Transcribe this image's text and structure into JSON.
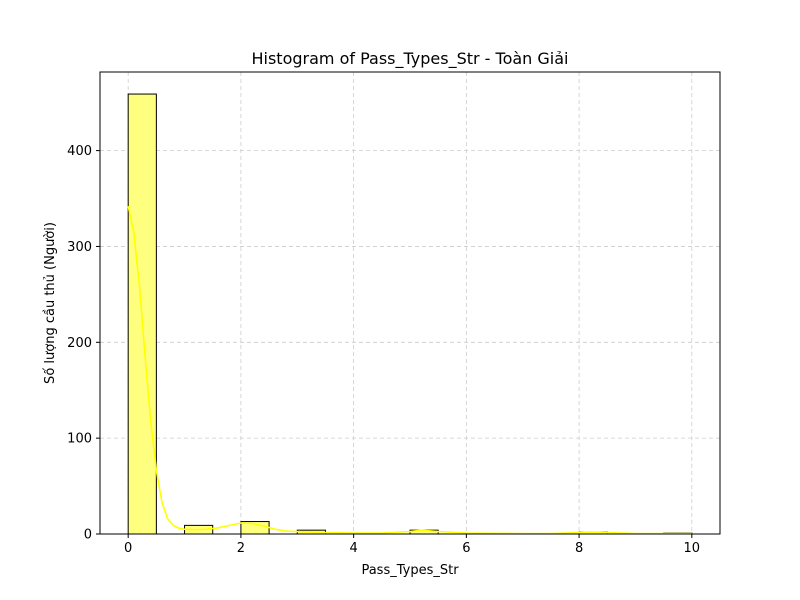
{
  "chart_data": {
    "type": "bar",
    "title": "Histogram of Pass_Types_Str - Toàn Giải",
    "xlabel": "Pass_Types_Str",
    "ylabel": "Số lượng cầu thủ (Người)",
    "xlim": [
      -0.5,
      10.5
    ],
    "ylim": [
      0,
      482
    ],
    "xticks": [
      0,
      2,
      4,
      6,
      8,
      10
    ],
    "yticks": [
      0,
      100,
      200,
      300,
      400
    ],
    "grid": true,
    "bins": [
      {
        "start": 0.0,
        "end": 0.5,
        "count": 459
      },
      {
        "start": 0.5,
        "end": 1.0,
        "count": 0
      },
      {
        "start": 1.0,
        "end": 1.5,
        "count": 9
      },
      {
        "start": 1.5,
        "end": 2.0,
        "count": 0
      },
      {
        "start": 2.0,
        "end": 2.5,
        "count": 13
      },
      {
        "start": 2.5,
        "end": 3.0,
        "count": 0
      },
      {
        "start": 3.0,
        "end": 3.5,
        "count": 4
      },
      {
        "start": 3.5,
        "end": 4.0,
        "count": 0
      },
      {
        "start": 4.0,
        "end": 4.5,
        "count": 0
      },
      {
        "start": 4.5,
        "end": 5.0,
        "count": 0
      },
      {
        "start": 5.0,
        "end": 5.5,
        "count": 4
      },
      {
        "start": 5.5,
        "end": 6.0,
        "count": 0
      },
      {
        "start": 6.0,
        "end": 6.5,
        "count": 0
      },
      {
        "start": 6.5,
        "end": 7.0,
        "count": 0
      },
      {
        "start": 7.0,
        "end": 7.5,
        "count": 0
      },
      {
        "start": 7.5,
        "end": 8.0,
        "count": 0
      },
      {
        "start": 8.0,
        "end": 8.5,
        "count": 2
      },
      {
        "start": 8.5,
        "end": 9.0,
        "count": 0
      },
      {
        "start": 9.0,
        "end": 9.5,
        "count": 0
      },
      {
        "start": 9.5,
        "end": 10.0,
        "count": 1
      }
    ],
    "kde": {
      "x": [
        0.0,
        0.1,
        0.2,
        0.3,
        0.4,
        0.5,
        0.6,
        0.7,
        0.8,
        0.9,
        1.0,
        1.2,
        1.4,
        1.6,
        1.8,
        2.0,
        2.2,
        2.4,
        2.6,
        2.8,
        3.0,
        3.2,
        3.5,
        4.0,
        4.5,
        5.0,
        5.2,
        5.5,
        6.0,
        7.0,
        7.5,
        8.0,
        8.2,
        8.5,
        9.0,
        9.5,
        10.0
      ],
      "y": [
        342,
        315,
        258,
        185,
        118,
        66,
        33,
        16,
        9,
        6,
        5,
        4.5,
        5,
        6.5,
        9,
        11.5,
        11,
        8.5,
        5,
        3,
        2.5,
        2,
        1.5,
        1,
        1,
        2.5,
        4,
        2.5,
        1,
        0.5,
        0.5,
        1.5,
        2,
        1.5,
        0.5,
        0.5,
        0.5
      ]
    },
    "colors": {
      "bar_fill": "#ffff7f",
      "bar_edge": "#000000",
      "kde_line": "#ffff00",
      "grid": "#cccccc",
      "axes": "#000000"
    }
  }
}
